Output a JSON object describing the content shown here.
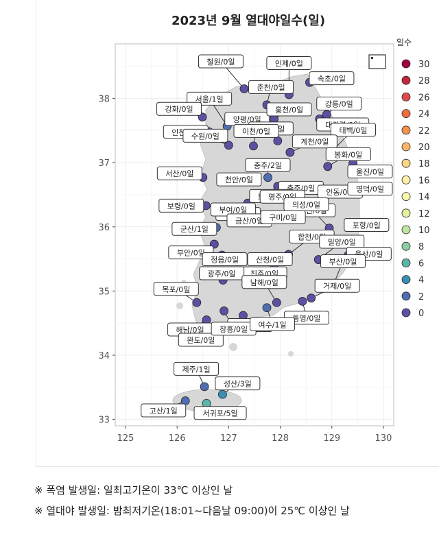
{
  "chart_data": {
    "type": "scatter",
    "title": "2023년 9월 열대야일수(일)",
    "xlabel": "",
    "ylabel": "",
    "xlim": [
      124.8,
      130.2
    ],
    "ylim": [
      32.9,
      38.85
    ],
    "xticks": [
      125,
      126,
      127,
      128,
      129,
      130
    ],
    "yticks": [
      33,
      34,
      35,
      36,
      37,
      38
    ],
    "grid": true,
    "legend": {
      "title": "일수",
      "placement": "right",
      "items": [
        {
          "label": "30",
          "color": "#9e0142"
        },
        {
          "label": "28",
          "color": "#c1283e"
        },
        {
          "label": "26",
          "color": "#e04a4a"
        },
        {
          "label": "24",
          "color": "#f06c43"
        },
        {
          "label": "22",
          "color": "#f8924e"
        },
        {
          "label": "20",
          "color": "#fdb666"
        },
        {
          "label": "18",
          "color": "#fed584"
        },
        {
          "label": "16",
          "color": "#fff1a8"
        },
        {
          "label": "14",
          "color": "#f7fbae"
        },
        {
          "label": "12",
          "color": "#e2f4a0"
        },
        {
          "label": "10",
          "color": "#c0e59e"
        },
        {
          "label": "8",
          "color": "#8ccfa3"
        },
        {
          "label": "6",
          "color": "#5bb4a8"
        },
        {
          "label": "4",
          "color": "#3a8fb3"
        },
        {
          "label": "2",
          "color": "#4f6db0"
        },
        {
          "label": "0",
          "color": "#5e4fa2"
        }
      ]
    },
    "stations": [
      {
        "label": "철원/0일",
        "lon": 127.3,
        "lat": 38.15,
        "value": 0
      },
      {
        "label": "인제/0일",
        "lon": 128.17,
        "lat": 38.06,
        "value": 0
      },
      {
        "label": "속초/0일",
        "lon": 128.57,
        "lat": 38.25,
        "value": 0
      },
      {
        "label": "서울/1일",
        "lon": 126.97,
        "lat": 37.57,
        "value": 1
      },
      {
        "label": "춘천/0일",
        "lon": 127.74,
        "lat": 37.9,
        "value": 0
      },
      {
        "label": "강릉/0일",
        "lon": 128.9,
        "lat": 37.75,
        "value": 0
      },
      {
        "label": "강화/0일",
        "lon": 126.49,
        "lat": 37.71,
        "value": 0
      },
      {
        "label": "양평/0일",
        "lon": 127.49,
        "lat": 37.49,
        "value": 0
      },
      {
        "label": "홍천/0일",
        "lon": 127.88,
        "lat": 37.68,
        "value": 0
      },
      {
        "label": "대관령/0일",
        "lon": 128.76,
        "lat": 37.68,
        "value": 0
      },
      {
        "label": "인천/1일",
        "lon": 126.62,
        "lat": 37.48,
        "value": 1
      },
      {
        "label": "원주/0일",
        "lon": 127.95,
        "lat": 37.34,
        "value": 0
      },
      {
        "label": "태백/0일",
        "lon": 128.99,
        "lat": 37.17,
        "value": 0
      },
      {
        "label": "수원/0일",
        "lon": 127.0,
        "lat": 37.27,
        "value": 0
      },
      {
        "label": "이천/0일",
        "lon": 127.48,
        "lat": 37.26,
        "value": 0
      },
      {
        "label": "계천/0일",
        "lon": 128.19,
        "lat": 37.16,
        "value": 0
      },
      {
        "label": "봉화/0일",
        "lon": 128.92,
        "lat": 36.94,
        "value": 0
      },
      {
        "label": "충주/2일",
        "lon": 127.76,
        "lat": 36.77,
        "value": 2
      },
      {
        "label": "울진/0일",
        "lon": 129.41,
        "lat": 36.99,
        "value": 0
      },
      {
        "label": "서산/0일",
        "lon": 126.5,
        "lat": 36.77,
        "value": 0
      },
      {
        "label": "천안/0일",
        "lon": 127.12,
        "lat": 36.76,
        "value": 0
      },
      {
        "label": "충주/0일",
        "lon": 127.95,
        "lat": 36.63,
        "value": 0
      },
      {
        "label": "안동/0일",
        "lon": 128.71,
        "lat": 36.57,
        "value": 0
      },
      {
        "label": "대전/0일",
        "lon": 127.37,
        "lat": 36.37,
        "value": 0
      },
      {
        "label": "영덕/0일",
        "lon": 129.37,
        "lat": 36.53,
        "value": 0
      },
      {
        "label": "보령/0일",
        "lon": 126.56,
        "lat": 36.33,
        "value": 0
      },
      {
        "label": "부여/0일",
        "lon": 126.9,
        "lat": 36.27,
        "value": 0
      },
      {
        "label": "보은/0일",
        "lon": 127.73,
        "lat": 36.48,
        "value": 0
      },
      {
        "label": "영주/0일",
        "lon": 128.52,
        "lat": 36.3,
        "value": 0
      },
      {
        "label": "영천/0일",
        "lon": 128.95,
        "lat": 35.98,
        "value": 0
      },
      {
        "label": "포항/0일",
        "lon": 129.38,
        "lat": 36.03,
        "value": 0
      },
      {
        "label": "군산/1일",
        "lon": 126.76,
        "lat": 35.99,
        "value": 1
      },
      {
        "label": "의성/0일",
        "lon": 128.69,
        "lat": 36.35,
        "value": 0
      },
      {
        "label": "금산/0일",
        "lon": 127.48,
        "lat": 36.1,
        "value": 0
      },
      {
        "label": "구미/0일",
        "lon": 128.32,
        "lat": 36.13,
        "value": 0
      },
      {
        "label": "부안/0일",
        "lon": 126.72,
        "lat": 35.73,
        "value": 0
      },
      {
        "label": "합천/0일",
        "lon": 128.16,
        "lat": 35.57,
        "value": 0
      },
      {
        "label": "밀양/0일",
        "lon": 128.74,
        "lat": 35.49,
        "value": 0
      },
      {
        "label": "울산/0일",
        "lon": 129.32,
        "lat": 35.56,
        "value": 0
      },
      {
        "label": "정읍/0일",
        "lon": 126.87,
        "lat": 35.56,
        "value": 0
      },
      {
        "label": "산청/0일",
        "lon": 127.88,
        "lat": 35.41,
        "value": 0
      },
      {
        "label": "진주/0일",
        "lon": 128.04,
        "lat": 35.19,
        "value": 0
      },
      {
        "label": "부산/0일",
        "lon": 129.03,
        "lat": 35.1,
        "value": 0
      },
      {
        "label": "목포/0일",
        "lon": 126.38,
        "lat": 34.82,
        "value": 0
      },
      {
        "label": "광주/0일",
        "lon": 126.89,
        "lat": 35.17,
        "value": 0
      },
      {
        "label": "남해/0일",
        "lon": 127.93,
        "lat": 34.82,
        "value": 0
      },
      {
        "label": "거제/0일",
        "lon": 128.6,
        "lat": 34.89,
        "value": 0
      },
      {
        "label": "해남/0일",
        "lon": 126.57,
        "lat": 34.55,
        "value": 0
      },
      {
        "label": "고흥/0일",
        "lon": 127.28,
        "lat": 34.62,
        "value": 0
      },
      {
        "label": "통영/0일",
        "lon": 128.43,
        "lat": 34.84,
        "value": 0
      },
      {
        "label": "완도/0일",
        "lon": 126.7,
        "lat": 34.39,
        "value": 0
      },
      {
        "label": "장흥/0일",
        "lon": 126.91,
        "lat": 34.69,
        "value": 0
      },
      {
        "label": "여수/1일",
        "lon": 127.74,
        "lat": 34.74,
        "value": 1
      },
      {
        "label": "제주/1일",
        "lon": 126.53,
        "lat": 33.51,
        "value": 1
      },
      {
        "label": "성산/3일",
        "lon": 126.88,
        "lat": 33.39,
        "value": 3
      },
      {
        "label": "고산/1일",
        "lon": 126.16,
        "lat": 33.29,
        "value": 1
      },
      {
        "label": "서귀포/5일",
        "lon": 126.57,
        "lat": 33.25,
        "value": 5
      }
    ]
  },
  "notes": [
    "※ 폭염 발생일: 일최고기온이 33℃ 이상인 날",
    "※ 열대야 발생일: 밤최저기온(18:01~다음날 09:00)이 25℃ 이상인 날"
  ]
}
